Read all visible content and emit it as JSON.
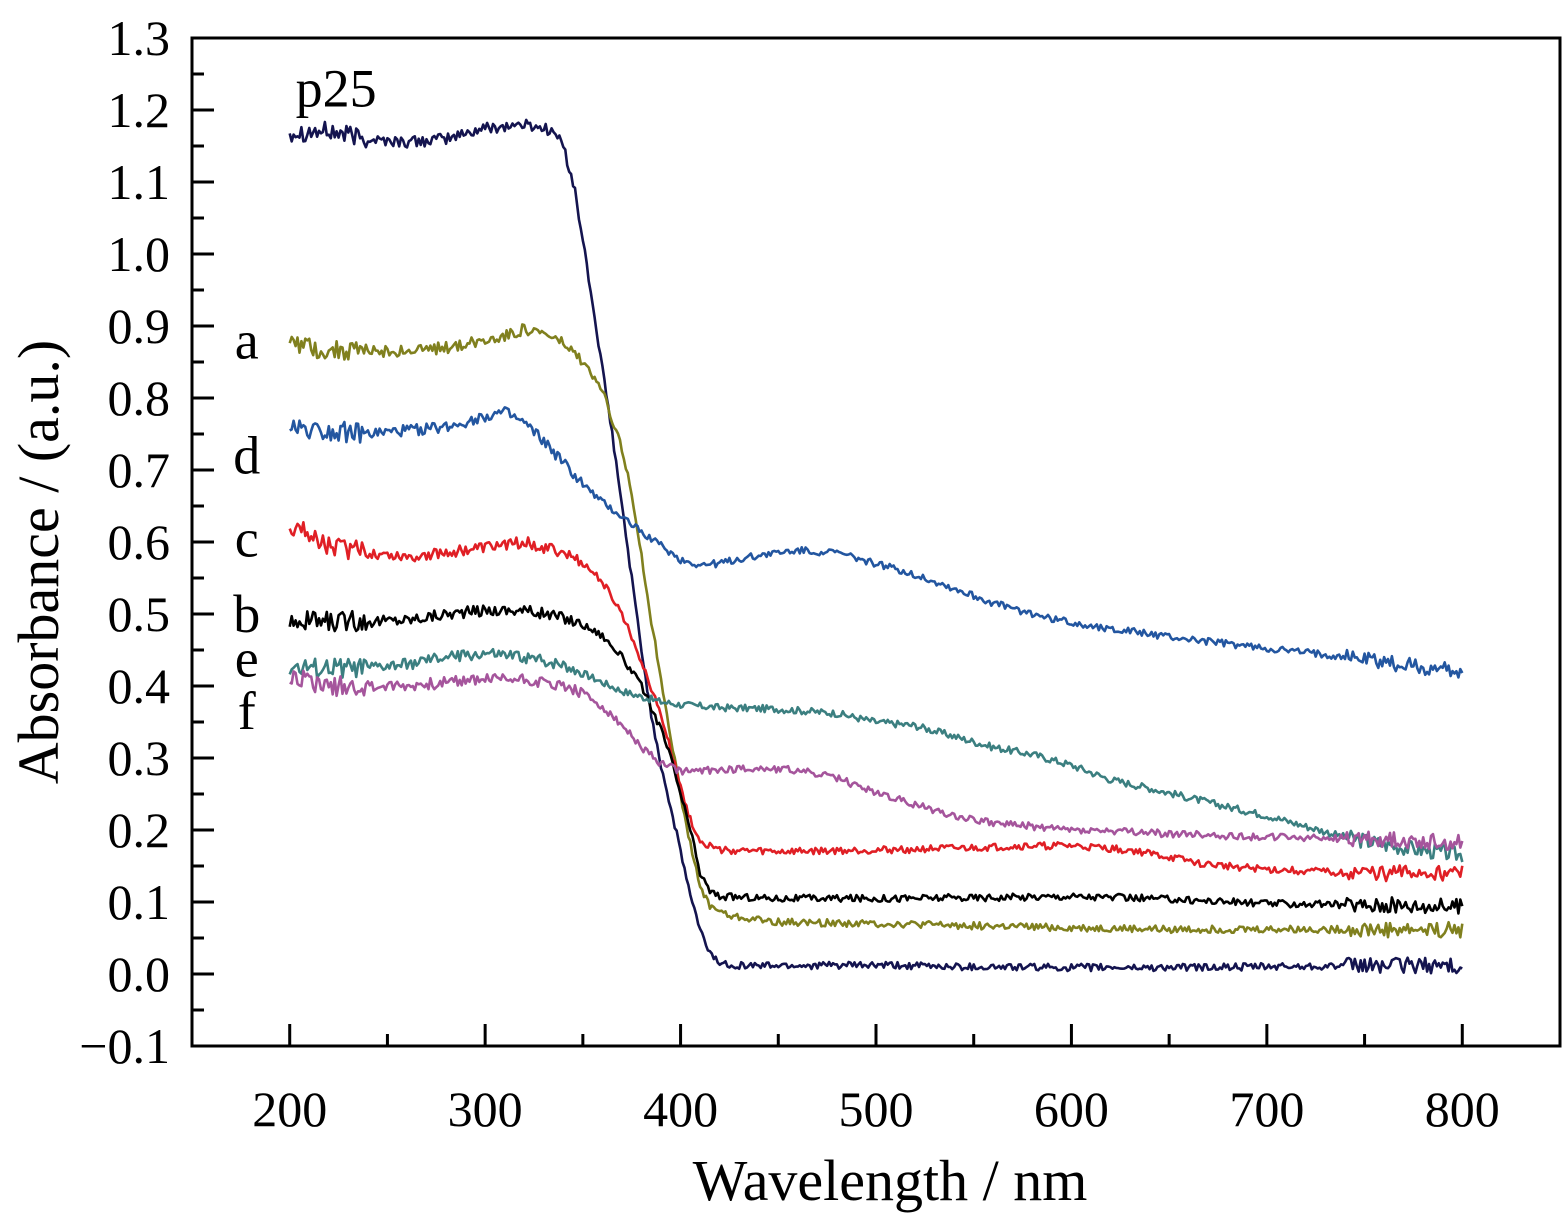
{
  "chart_data": {
    "type": "line",
    "title": "",
    "xlabel": "Wavelength / nm",
    "ylabel": "Absorbance / (a.u.)",
    "xlim": [
      150,
      850
    ],
    "ylim": [
      -0.1,
      1.3
    ],
    "xticks": [
      "200",
      "300",
      "400",
      "500",
      "600",
      "700",
      "800"
    ],
    "xtick_values": [
      200,
      300,
      400,
      500,
      600,
      700,
      800
    ],
    "yticks": [
      "−0.1",
      "0.0",
      "0.1",
      "0.2",
      "0.3",
      "0.4",
      "0.5",
      "0.6",
      "0.7",
      "0.8",
      "0.9",
      "1.0",
      "1.1",
      "1.2",
      "1.3"
    ],
    "ytick_values": [
      -0.1,
      0.0,
      0.1,
      0.2,
      0.3,
      0.4,
      0.5,
      0.6,
      0.7,
      0.8,
      0.9,
      1.0,
      1.1,
      1.2,
      1.3
    ],
    "grid": false,
    "legend": "none",
    "series": [
      {
        "name": "p25",
        "color": "#14144f",
        "points": [
          [
            200,
            1.17
          ],
          [
            220,
            1.17
          ],
          [
            240,
            1.16
          ],
          [
            260,
            1.155
          ],
          [
            280,
            1.16
          ],
          [
            300,
            1.175
          ],
          [
            320,
            1.18
          ],
          [
            330,
            1.175
          ],
          [
            335,
            1.17
          ],
          [
            340,
            1.15
          ],
          [
            345,
            1.1
          ],
          [
            350,
            1.02
          ],
          [
            355,
            0.93
          ],
          [
            360,
            0.84
          ],
          [
            365,
            0.75
          ],
          [
            370,
            0.65
          ],
          [
            375,
            0.55
          ],
          [
            380,
            0.45
          ],
          [
            385,
            0.36
          ],
          [
            390,
            0.29
          ],
          [
            395,
            0.23
          ],
          [
            400,
            0.17
          ],
          [
            405,
            0.11
          ],
          [
            410,
            0.06
          ],
          [
            415,
            0.03
          ],
          [
            420,
            0.015
          ],
          [
            430,
            0.012
          ],
          [
            450,
            0.012
          ],
          [
            500,
            0.012
          ],
          [
            550,
            0.01
          ],
          [
            600,
            0.009
          ],
          [
            650,
            0.009
          ],
          [
            700,
            0.01
          ],
          [
            750,
            0.012
          ],
          [
            800,
            0.012
          ]
        ]
      },
      {
        "name": "a",
        "color": "#80801e",
        "points": [
          [
            200,
            0.88
          ],
          [
            220,
            0.865
          ],
          [
            240,
            0.865
          ],
          [
            260,
            0.865
          ],
          [
            280,
            0.87
          ],
          [
            300,
            0.88
          ],
          [
            320,
            0.895
          ],
          [
            330,
            0.89
          ],
          [
            340,
            0.875
          ],
          [
            350,
            0.85
          ],
          [
            360,
            0.81
          ],
          [
            370,
            0.73
          ],
          [
            375,
            0.67
          ],
          [
            380,
            0.58
          ],
          [
            385,
            0.49
          ],
          [
            390,
            0.41
          ],
          [
            395,
            0.33
          ],
          [
            400,
            0.25
          ],
          [
            405,
            0.18
          ],
          [
            410,
            0.12
          ],
          [
            415,
            0.095
          ],
          [
            425,
            0.08
          ],
          [
            450,
            0.072
          ],
          [
            500,
            0.07
          ],
          [
            550,
            0.067
          ],
          [
            600,
            0.064
          ],
          [
            650,
            0.062
          ],
          [
            700,
            0.062
          ],
          [
            750,
            0.062
          ],
          [
            800,
            0.062
          ]
        ]
      },
      {
        "name": "d",
        "color": "#2356a0",
        "points": [
          [
            200,
            0.76
          ],
          [
            220,
            0.755
          ],
          [
            240,
            0.75
          ],
          [
            260,
            0.755
          ],
          [
            280,
            0.76
          ],
          [
            300,
            0.775
          ],
          [
            310,
            0.78
          ],
          [
            320,
            0.765
          ],
          [
            330,
            0.74
          ],
          [
            340,
            0.71
          ],
          [
            350,
            0.68
          ],
          [
            360,
            0.655
          ],
          [
            370,
            0.635
          ],
          [
            380,
            0.615
          ],
          [
            390,
            0.595
          ],
          [
            400,
            0.575
          ],
          [
            410,
            0.568
          ],
          [
            420,
            0.57
          ],
          [
            440,
            0.582
          ],
          [
            460,
            0.588
          ],
          [
            480,
            0.585
          ],
          [
            500,
            0.57
          ],
          [
            520,
            0.555
          ],
          [
            540,
            0.535
          ],
          [
            560,
            0.515
          ],
          [
            580,
            0.5
          ],
          [
            600,
            0.488
          ],
          [
            650,
            0.468
          ],
          [
            700,
            0.452
          ],
          [
            750,
            0.438
          ],
          [
            770,
            0.43
          ],
          [
            800,
            0.42
          ]
        ]
      },
      {
        "name": "c",
        "color": "#e01f25",
        "points": [
          [
            200,
            0.625
          ],
          [
            220,
            0.595
          ],
          [
            240,
            0.585
          ],
          [
            260,
            0.58
          ],
          [
            280,
            0.585
          ],
          [
            300,
            0.592
          ],
          [
            320,
            0.6
          ],
          [
            340,
            0.585
          ],
          [
            350,
            0.57
          ],
          [
            360,
            0.545
          ],
          [
            370,
            0.5
          ],
          [
            380,
            0.435
          ],
          [
            390,
            0.36
          ],
          [
            395,
            0.31
          ],
          [
            400,
            0.26
          ],
          [
            405,
            0.215
          ],
          [
            410,
            0.185
          ],
          [
            420,
            0.172
          ],
          [
            450,
            0.17
          ],
          [
            500,
            0.172
          ],
          [
            550,
            0.175
          ],
          [
            580,
            0.178
          ],
          [
            600,
            0.178
          ],
          [
            630,
            0.172
          ],
          [
            650,
            0.162
          ],
          [
            670,
            0.152
          ],
          [
            700,
            0.145
          ],
          [
            750,
            0.14
          ],
          [
            800,
            0.14
          ]
        ]
      },
      {
        "name": "b",
        "color": "#000000",
        "points": [
          [
            200,
            0.49
          ],
          [
            220,
            0.49
          ],
          [
            240,
            0.49
          ],
          [
            260,
            0.492
          ],
          [
            280,
            0.5
          ],
          [
            300,
            0.505
          ],
          [
            320,
            0.505
          ],
          [
            340,
            0.495
          ],
          [
            350,
            0.485
          ],
          [
            360,
            0.47
          ],
          [
            370,
            0.44
          ],
          [
            380,
            0.4
          ],
          [
            390,
            0.34
          ],
          [
            395,
            0.3
          ],
          [
            400,
            0.25
          ],
          [
            405,
            0.2
          ],
          [
            410,
            0.14
          ],
          [
            415,
            0.115
          ],
          [
            420,
            0.108
          ],
          [
            450,
            0.105
          ],
          [
            500,
            0.105
          ],
          [
            550,
            0.106
          ],
          [
            600,
            0.108
          ],
          [
            650,
            0.104
          ],
          [
            700,
            0.098
          ],
          [
            750,
            0.096
          ],
          [
            800,
            0.094
          ]
        ]
      },
      {
        "name": "e",
        "color": "#3b7f80",
        "points": [
          [
            200,
            0.425
          ],
          [
            220,
            0.425
          ],
          [
            240,
            0.425
          ],
          [
            260,
            0.43
          ],
          [
            280,
            0.44
          ],
          [
            300,
            0.445
          ],
          [
            320,
            0.44
          ],
          [
            340,
            0.43
          ],
          [
            350,
            0.418
          ],
          [
            360,
            0.405
          ],
          [
            370,
            0.393
          ],
          [
            380,
            0.385
          ],
          [
            390,
            0.378
          ],
          [
            400,
            0.374
          ],
          [
            420,
            0.37
          ],
          [
            450,
            0.368
          ],
          [
            480,
            0.362
          ],
          [
            500,
            0.35
          ],
          [
            520,
            0.345
          ],
          [
            540,
            0.33
          ],
          [
            560,
            0.315
          ],
          [
            580,
            0.305
          ],
          [
            600,
            0.29
          ],
          [
            620,
            0.27
          ],
          [
            640,
            0.258
          ],
          [
            660,
            0.245
          ],
          [
            680,
            0.232
          ],
          [
            700,
            0.22
          ],
          [
            720,
            0.205
          ],
          [
            740,
            0.19
          ],
          [
            760,
            0.18
          ],
          [
            780,
            0.172
          ],
          [
            800,
            0.165
          ]
        ]
      },
      {
        "name": "f",
        "color": "#a5559c",
        "points": [
          [
            200,
            0.415
          ],
          [
            220,
            0.4
          ],
          [
            240,
            0.4
          ],
          [
            260,
            0.4
          ],
          [
            280,
            0.405
          ],
          [
            300,
            0.41
          ],
          [
            320,
            0.41
          ],
          [
            340,
            0.4
          ],
          [
            350,
            0.39
          ],
          [
            360,
            0.37
          ],
          [
            370,
            0.345
          ],
          [
            380,
            0.315
          ],
          [
            390,
            0.292
          ],
          [
            400,
            0.282
          ],
          [
            410,
            0.282
          ],
          [
            420,
            0.284
          ],
          [
            440,
            0.286
          ],
          [
            460,
            0.283
          ],
          [
            480,
            0.272
          ],
          [
            500,
            0.252
          ],
          [
            520,
            0.235
          ],
          [
            540,
            0.22
          ],
          [
            560,
            0.21
          ],
          [
            580,
            0.205
          ],
          [
            600,
            0.2
          ],
          [
            650,
            0.195
          ],
          [
            700,
            0.19
          ],
          [
            750,
            0.188
          ],
          [
            800,
            0.182
          ]
        ]
      }
    ],
    "labels": [
      {
        "text": "p25",
        "x": 203,
        "y": 1.23
      },
      {
        "text": "a",
        "x": 178,
        "y": 0.88
      },
      {
        "text": "d",
        "x": 178,
        "y": 0.72
      },
      {
        "text": "c",
        "x": 178,
        "y": 0.605
      },
      {
        "text": "b",
        "x": 178,
        "y": 0.5
      },
      {
        "text": "e",
        "x": 178,
        "y": 0.438
      },
      {
        "text": "f",
        "x": 178,
        "y": 0.365
      }
    ]
  }
}
